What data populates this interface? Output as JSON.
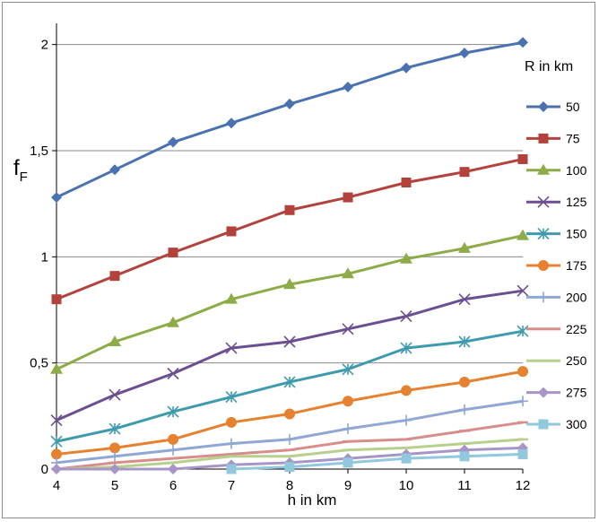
{
  "chart_data": {
    "type": "line",
    "title": "",
    "xlabel": "h in km",
    "ylabel": "f",
    "ylabel_sub": "F",
    "x": [
      4,
      5,
      6,
      7,
      8,
      9,
      10,
      11,
      12
    ],
    "x_ticks": [
      "4",
      "5",
      "6",
      "7",
      "8",
      "9",
      "10",
      "11",
      "12"
    ],
    "xlim": [
      4,
      12
    ],
    "ylim": [
      0,
      2.1
    ],
    "y_ticks": [
      {
        "value": 0,
        "label": "0"
      },
      {
        "value": 0.5,
        "label": "0,5"
      },
      {
        "value": 1,
        "label": "1"
      },
      {
        "value": 1.5,
        "label": "1,5"
      },
      {
        "value": 2,
        "label": "2"
      }
    ],
    "grid": "horizontal",
    "legend_title": "R in km",
    "legend_position": "right",
    "series": [
      {
        "name": "50",
        "color": "#4a72b0",
        "marker": "diamond",
        "values": [
          1.28,
          1.41,
          1.54,
          1.63,
          1.72,
          1.8,
          1.89,
          1.96,
          2.01
        ]
      },
      {
        "name": "75",
        "color": "#b3423c",
        "marker": "square",
        "values": [
          0.8,
          0.91,
          1.02,
          1.12,
          1.22,
          1.28,
          1.35,
          1.4,
          1.46
        ]
      },
      {
        "name": "100",
        "color": "#8dab46",
        "marker": "triangle",
        "values": [
          0.47,
          0.6,
          0.69,
          0.8,
          0.87,
          0.92,
          0.99,
          1.04,
          1.1
        ]
      },
      {
        "name": "125",
        "color": "#6b4f91",
        "marker": "x",
        "values": [
          0.23,
          0.35,
          0.45,
          0.57,
          0.6,
          0.66,
          0.72,
          0.8,
          0.84
        ]
      },
      {
        "name": "150",
        "color": "#3e9aad",
        "marker": "star",
        "values": [
          0.13,
          0.19,
          0.27,
          0.34,
          0.41,
          0.47,
          0.57,
          0.6,
          0.65
        ]
      },
      {
        "name": "175",
        "color": "#e5812f",
        "marker": "circle",
        "values": [
          0.07,
          0.1,
          0.14,
          0.22,
          0.26,
          0.32,
          0.37,
          0.41,
          0.46
        ]
      },
      {
        "name": "200",
        "color": "#8fa7d4",
        "marker": "plus",
        "values": [
          0.03,
          0.06,
          0.09,
          0.12,
          0.14,
          0.19,
          0.23,
          0.28,
          0.32
        ]
      },
      {
        "name": "225",
        "color": "#d78e8b",
        "marker": "dash",
        "values": [
          0.0,
          0.03,
          0.05,
          0.07,
          0.09,
          0.13,
          0.14,
          0.18,
          0.22
        ]
      },
      {
        "name": "250",
        "color": "#b8d08d",
        "marker": "dash",
        "values": [
          0.0,
          0.01,
          0.03,
          0.06,
          0.06,
          0.09,
          0.1,
          0.12,
          0.14
        ]
      },
      {
        "name": "275",
        "color": "#a895c7",
        "marker": "diamond",
        "values": [
          0.0,
          0.0,
          0.0,
          0.02,
          0.03,
          0.05,
          0.07,
          0.09,
          0.1
        ]
      },
      {
        "name": "300",
        "color": "#92c8dd",
        "marker": "square",
        "values": [
          null,
          null,
          null,
          0.0,
          0.01,
          0.03,
          0.05,
          0.06,
          0.07
        ]
      }
    ]
  }
}
